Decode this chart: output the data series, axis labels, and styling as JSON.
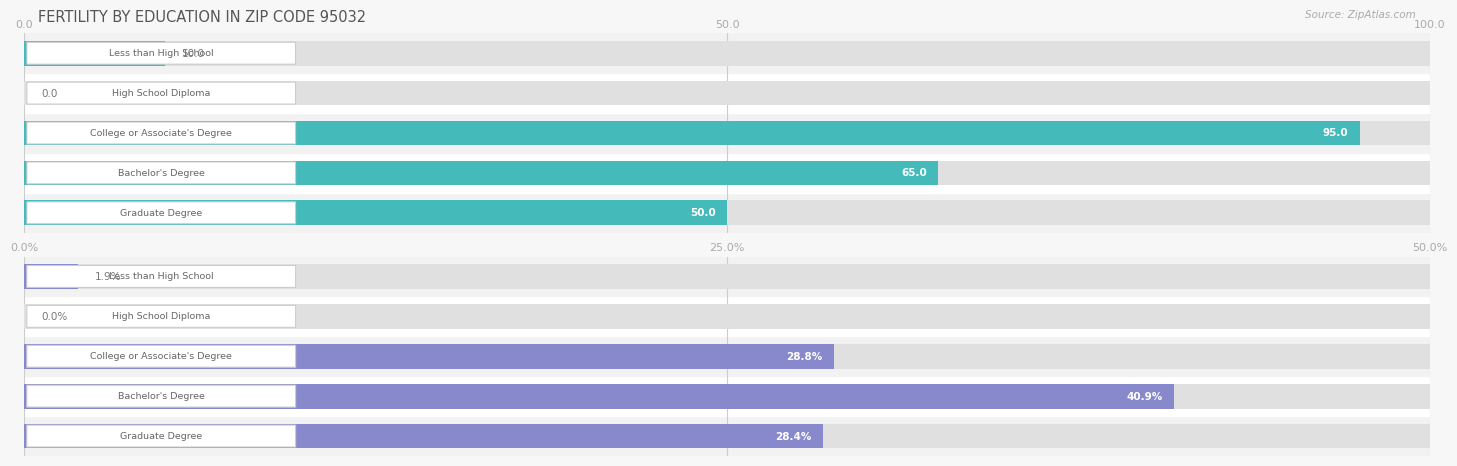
{
  "title": "FERTILITY BY EDUCATION IN ZIP CODE 95032",
  "source": "Source: ZipAtlas.com",
  "chart1": {
    "categories": [
      "Less than High School",
      "High School Diploma",
      "College or Associate's Degree",
      "Bachelor's Degree",
      "Graduate Degree"
    ],
    "values": [
      10.0,
      0.0,
      95.0,
      65.0,
      50.0
    ],
    "value_labels": [
      "10.0",
      "0.0",
      "95.0",
      "65.0",
      "50.0"
    ],
    "xmax": 100.0,
    "xticks": [
      0.0,
      50.0,
      100.0
    ],
    "xtick_labels": [
      "0.0",
      "50.0",
      "100.0"
    ],
    "bar_color": "#45BABA",
    "label_color_inside": "#ffffff",
    "label_color_outside": "#777777"
  },
  "chart2": {
    "categories": [
      "Less than High School",
      "High School Diploma",
      "College or Associate's Degree",
      "Bachelor's Degree",
      "Graduate Degree"
    ],
    "values": [
      1.9,
      0.0,
      28.8,
      40.9,
      28.4
    ],
    "value_labels": [
      "1.9%",
      "0.0%",
      "28.8%",
      "40.9%",
      "28.4%"
    ],
    "xmax": 50.0,
    "xticks": [
      0.0,
      25.0,
      50.0
    ],
    "xtick_labels": [
      "0.0%",
      "25.0%",
      "50.0%"
    ],
    "bar_color": "#8888CC",
    "label_color_inside": "#ffffff",
    "label_color_outside": "#777777"
  },
  "bg_color": "#f7f7f7",
  "bar_bg_color": "#e0e0e0",
  "label_bg_color": "#ffffff",
  "label_font_color": "#666666",
  "title_color": "#555555",
  "tick_color": "#aaaaaa",
  "grid_color": "#cccccc"
}
